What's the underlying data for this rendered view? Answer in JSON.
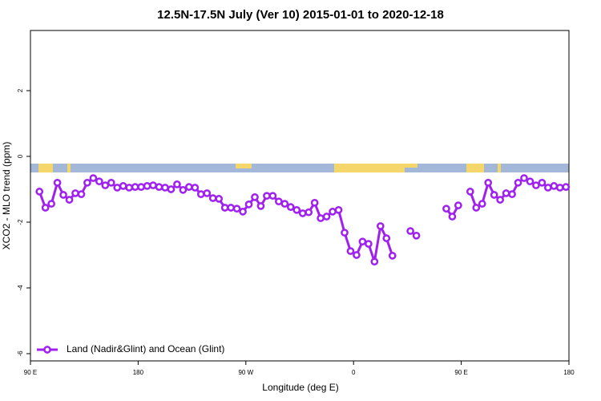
{
  "chart_data": {
    "type": "line",
    "title": "12.5N-17.5N July (Ver 10)   2015-01-01 to 2020-12-18",
    "x_label": "Longitude (deg E)",
    "y_label": "XCO2 - MLO trend (ppm)",
    "x": [
      97.5,
      102.5,
      107.5,
      112.5,
      117.5,
      122.5,
      127.5,
      132.5,
      137.5,
      142.5,
      147.5,
      152.5,
      157.5,
      162.5,
      167.5,
      172.5,
      177.5,
      182.5,
      187.5,
      192.5,
      197.5,
      202.5,
      207.5,
      212.5,
      217.5,
      222.5,
      227.5,
      232.5,
      237.5,
      242.5,
      247.5,
      252.5,
      257.5,
      262.5,
      267.5,
      272.5,
      277.5,
      282.5,
      287.5,
      292.5,
      297.5,
      302.5,
      307.5,
      312.5,
      317.5,
      322.5,
      327.5,
      332.5,
      337.5,
      342.5,
      347.5,
      352.5,
      357.5,
      362.5,
      367.5,
      372.5,
      377.5,
      382.5,
      387.5,
      392.5,
      397.5,
      407.5,
      412.5,
      417.5,
      437.5,
      442.5,
      447.5,
      452.5,
      457.5,
      462.5,
      467.5,
      472.5,
      477.5,
      482.5,
      487.5,
      492.5,
      497.5,
      502.5,
      507.5,
      512.5,
      517.5,
      522.5,
      527.5,
      532.5,
      537.5
    ],
    "series": [
      {
        "name": "Land (Nadir&Glint) and Ocean (Glint)",
        "color": "#a020f0",
        "values": [
          -1.07,
          -1.56,
          -1.44,
          -0.8,
          -1.17,
          -1.32,
          -1.12,
          -1.15,
          -0.8,
          -0.66,
          -0.76,
          -0.88,
          -0.8,
          -0.95,
          -0.9,
          -0.95,
          -0.93,
          -0.93,
          -0.9,
          -0.88,
          -0.93,
          -0.95,
          -1.0,
          -0.85,
          -1.02,
          -0.93,
          -0.95,
          -1.15,
          -1.12,
          -1.27,
          -1.29,
          -1.56,
          -1.56,
          -1.59,
          -1.68,
          -1.46,
          -1.24,
          -1.51,
          -1.2,
          -1.2,
          -1.37,
          -1.44,
          -1.54,
          -1.63,
          -1.73,
          -1.7,
          -1.41,
          -1.88,
          -1.83,
          -1.68,
          -1.63,
          -2.32,
          -2.88,
          -3.0,
          -2.59,
          -2.66,
          -3.2,
          -2.12,
          -2.49,
          -3.02,
          null,
          -2.27,
          -2.41,
          null,
          -1.59,
          -1.83,
          -1.49,
          null,
          -1.07,
          -1.56,
          -1.44,
          -0.8,
          -1.17,
          -1.32,
          -1.12,
          -1.15,
          -0.8,
          -0.66,
          -0.76,
          -0.88,
          -0.8,
          -0.95,
          -0.9,
          -0.95,
          -0.93
        ]
      }
    ],
    "xlim": [
      90,
      540
    ],
    "xticks": [
      {
        "value": 90,
        "label": "90 E"
      },
      180,
      {
        "value": 270,
        "label": "90 W"
      },
      {
        "value": 360,
        "label": "0"
      },
      {
        "value": 450,
        "label": "90 E"
      },
      {
        "value": 540,
        "label": "180"
      }
    ],
    "ylim": [
      -6.22,
      3.83
    ],
    "yticks": [
      -6,
      -4,
      -2,
      0,
      2
    ],
    "legend": "bottom-left"
  }
}
